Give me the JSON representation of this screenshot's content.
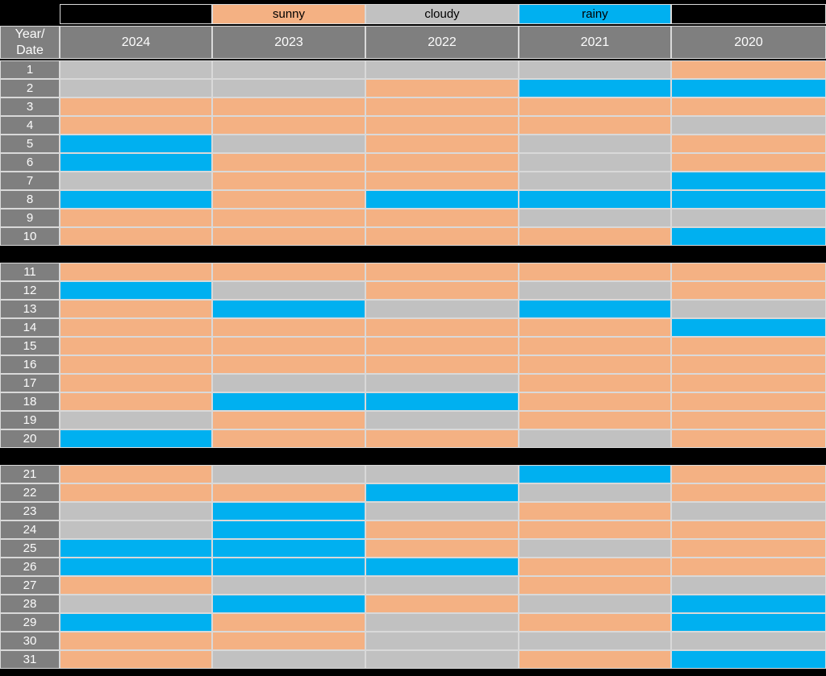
{
  "colors": {
    "background": "#000000",
    "header": "#7f7f7f",
    "header_text": "#fcfcfc",
    "border": "#d9d9d9",
    "sunny": "#f4b183",
    "cloudy": "#c1c1c1",
    "rainy": "#00b0f0"
  },
  "legend": {
    "items": [
      {
        "label": "sunny",
        "color": "sunny"
      },
      {
        "label": "cloudy",
        "color": "cloudy"
      },
      {
        "label": "rainy",
        "color": "rainy"
      }
    ]
  },
  "header": {
    "corner_label": "Year/\nDate",
    "years": [
      "2024",
      "2023",
      "2022",
      "2021",
      "2020"
    ]
  },
  "layout_blocks": [
    {
      "start": 1,
      "end": 10
    },
    {
      "start": 11,
      "end": 20
    },
    {
      "start": 21,
      "end": 31
    }
  ],
  "chart_data": {
    "type": "heatmap",
    "title": "",
    "x_categories": [
      "2024",
      "2023",
      "2022",
      "2021",
      "2020"
    ],
    "y_axis_label": "Year/Date",
    "y_categories": [
      "1",
      "2",
      "3",
      "4",
      "5",
      "6",
      "7",
      "8",
      "9",
      "10",
      "11",
      "12",
      "13",
      "14",
      "15",
      "16",
      "17",
      "18",
      "19",
      "20",
      "21",
      "22",
      "23",
      "24",
      "25",
      "26",
      "27",
      "28",
      "29",
      "30",
      "31"
    ],
    "legend_entries": [
      "sunny",
      "cloudy",
      "rainy"
    ],
    "rows": [
      {
        "date": "1",
        "values": [
          "cloudy",
          "cloudy",
          "cloudy",
          "cloudy",
          "sunny"
        ]
      },
      {
        "date": "2",
        "values": [
          "cloudy",
          "cloudy",
          "sunny",
          "rainy",
          "rainy"
        ]
      },
      {
        "date": "3",
        "values": [
          "sunny",
          "sunny",
          "sunny",
          "sunny",
          "sunny"
        ]
      },
      {
        "date": "4",
        "values": [
          "sunny",
          "sunny",
          "sunny",
          "sunny",
          "cloudy"
        ]
      },
      {
        "date": "5",
        "values": [
          "rainy",
          "cloudy",
          "sunny",
          "cloudy",
          "sunny"
        ]
      },
      {
        "date": "6",
        "values": [
          "rainy",
          "sunny",
          "sunny",
          "cloudy",
          "sunny"
        ]
      },
      {
        "date": "7",
        "values": [
          "cloudy",
          "sunny",
          "sunny",
          "cloudy",
          "rainy"
        ]
      },
      {
        "date": "8",
        "values": [
          "rainy",
          "sunny",
          "rainy",
          "rainy",
          "rainy"
        ]
      },
      {
        "date": "9",
        "values": [
          "sunny",
          "sunny",
          "sunny",
          "cloudy",
          "cloudy"
        ]
      },
      {
        "date": "10",
        "values": [
          "sunny",
          "sunny",
          "sunny",
          "sunny",
          "rainy"
        ]
      },
      {
        "date": "11",
        "values": [
          "sunny",
          "sunny",
          "sunny",
          "sunny",
          "sunny"
        ]
      },
      {
        "date": "12",
        "values": [
          "rainy",
          "cloudy",
          "sunny",
          "cloudy",
          "sunny"
        ]
      },
      {
        "date": "13",
        "values": [
          "sunny",
          "rainy",
          "cloudy",
          "rainy",
          "cloudy"
        ]
      },
      {
        "date": "14",
        "values": [
          "sunny",
          "sunny",
          "sunny",
          "sunny",
          "rainy"
        ]
      },
      {
        "date": "15",
        "values": [
          "sunny",
          "sunny",
          "sunny",
          "sunny",
          "sunny"
        ]
      },
      {
        "date": "16",
        "values": [
          "sunny",
          "sunny",
          "sunny",
          "sunny",
          "sunny"
        ]
      },
      {
        "date": "17",
        "values": [
          "sunny",
          "cloudy",
          "cloudy",
          "sunny",
          "sunny"
        ]
      },
      {
        "date": "18",
        "values": [
          "sunny",
          "rainy",
          "rainy",
          "sunny",
          "sunny"
        ]
      },
      {
        "date": "19",
        "values": [
          "cloudy",
          "sunny",
          "cloudy",
          "sunny",
          "sunny"
        ]
      },
      {
        "date": "20",
        "values": [
          "rainy",
          "sunny",
          "sunny",
          "cloudy",
          "sunny"
        ]
      },
      {
        "date": "21",
        "values": [
          "sunny",
          "cloudy",
          "cloudy",
          "rainy",
          "sunny"
        ]
      },
      {
        "date": "22",
        "values": [
          "sunny",
          "sunny",
          "rainy",
          "cloudy",
          "sunny"
        ]
      },
      {
        "date": "23",
        "values": [
          "cloudy",
          "rainy",
          "cloudy",
          "sunny",
          "cloudy"
        ]
      },
      {
        "date": "24",
        "values": [
          "cloudy",
          "rainy",
          "sunny",
          "sunny",
          "sunny"
        ]
      },
      {
        "date": "25",
        "values": [
          "rainy",
          "rainy",
          "sunny",
          "cloudy",
          "sunny"
        ]
      },
      {
        "date": "26",
        "values": [
          "rainy",
          "rainy",
          "rainy",
          "sunny",
          "sunny"
        ]
      },
      {
        "date": "27",
        "values": [
          "sunny",
          "cloudy",
          "cloudy",
          "sunny",
          "cloudy"
        ]
      },
      {
        "date": "28",
        "values": [
          "cloudy",
          "rainy",
          "sunny",
          "cloudy",
          "rainy"
        ]
      },
      {
        "date": "29",
        "values": [
          "rainy",
          "sunny",
          "cloudy",
          "sunny",
          "rainy"
        ]
      },
      {
        "date": "30",
        "values": [
          "sunny",
          "sunny",
          "cloudy",
          "cloudy",
          "cloudy"
        ]
      },
      {
        "date": "31",
        "values": [
          "sunny",
          "cloudy",
          "cloudy",
          "sunny",
          "rainy"
        ]
      }
    ]
  }
}
